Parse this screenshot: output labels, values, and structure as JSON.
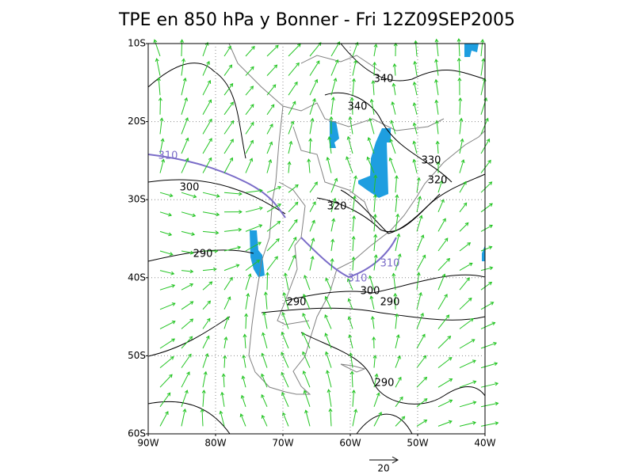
{
  "title": "TPE en 850 hPa y Bonner - Fri 12Z09SEP2005",
  "lat_labels": [
    "10S",
    "20S",
    "30S",
    "40S",
    "50S",
    "60S"
  ],
  "lon_labels": [
    "90W",
    "80W",
    "70W",
    "60W",
    "50W",
    "40W"
  ],
  "contour_labels": [
    "340",
    "340",
    "330",
    "320",
    "310",
    "300",
    "320",
    "290",
    "310",
    "310",
    "300",
    "290",
    "290",
    "290"
  ],
  "vector_scale_label": "20"
}
